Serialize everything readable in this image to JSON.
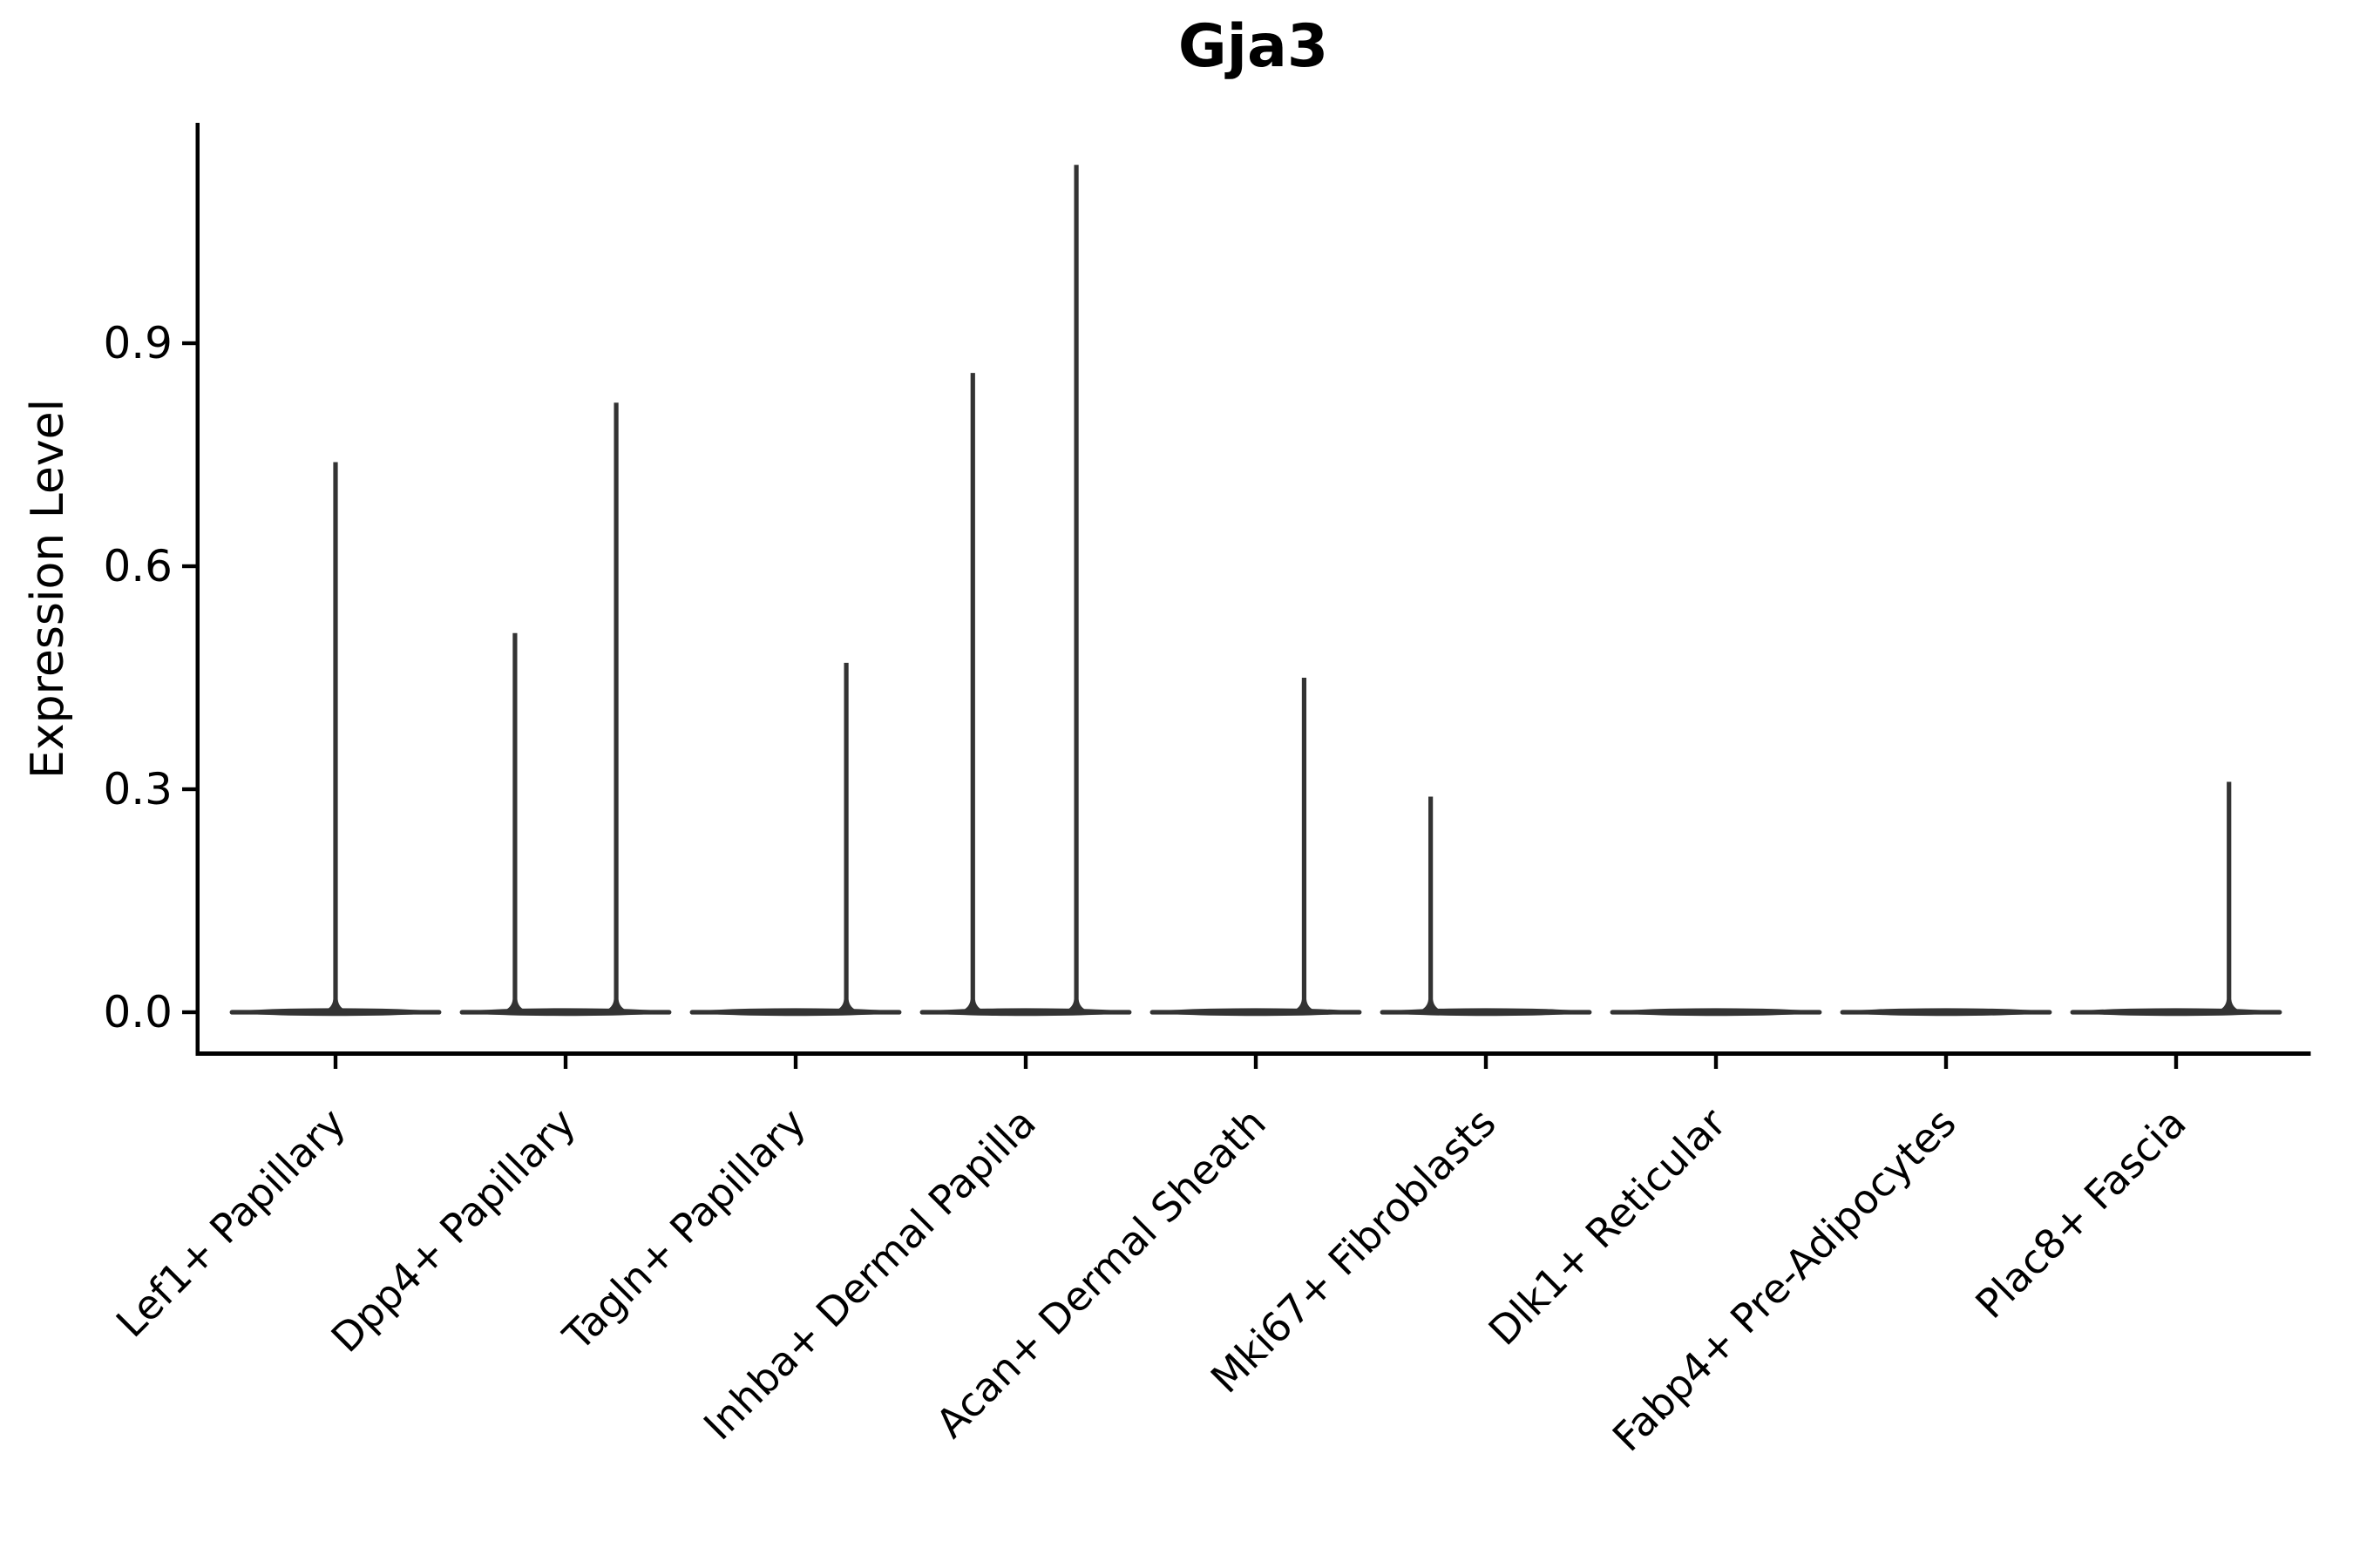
{
  "chart_data": {
    "type": "violin",
    "title": "Gja3",
    "ylabel": "Expression Level",
    "xlabel": "",
    "y_ticks": [
      0.0,
      0.3,
      0.6,
      0.9
    ],
    "y_tick_labels": [
      "0.0",
      "0.3",
      "0.6",
      "0.9"
    ],
    "ylim": [
      -0.06,
      1.2
    ],
    "grid": false,
    "legend": "none",
    "categories": [
      "Lef1+ Papillary",
      "Dpp4+ Papillary",
      "Tagln+ Papillary",
      "Inhba+ Dermal Papilla",
      "Acan+ Dermal Sheath",
      "Mki67+ Fibroblasts",
      "Dlk1+ Reticular",
      "Fabp4+ Pre-Adipocytes",
      "Plac8+ Fascia"
    ],
    "violins": [
      {
        "category": "Lef1+ Papillary",
        "baseline_value": 0.0,
        "max_expression": 0.74,
        "spikes": [
          {
            "x_offset": 0.0,
            "value": 0.74
          }
        ]
      },
      {
        "category": "Dpp4+ Papillary",
        "baseline_value": 0.0,
        "max_expression": 0.82,
        "spikes": [
          {
            "x_offset": -0.22,
            "value": 0.51
          },
          {
            "x_offset": 0.22,
            "value": 0.82
          }
        ]
      },
      {
        "category": "Tagln+ Papillary",
        "baseline_value": 0.0,
        "max_expression": 0.47,
        "spikes": [
          {
            "x_offset": 0.22,
            "value": 0.47
          }
        ]
      },
      {
        "category": "Inhba+ Dermal Papilla",
        "baseline_value": 0.0,
        "max_expression": 1.14,
        "spikes": [
          {
            "x_offset": -0.23,
            "value": 0.86
          },
          {
            "x_offset": 0.22,
            "value": 1.14
          }
        ]
      },
      {
        "category": "Acan+ Dermal Sheath",
        "baseline_value": 0.0,
        "max_expression": 0.45,
        "spikes": [
          {
            "x_offset": 0.21,
            "value": 0.45
          }
        ]
      },
      {
        "category": "Mki67+ Fibroblasts",
        "baseline_value": 0.0,
        "max_expression": 0.29,
        "spikes": [
          {
            "x_offset": -0.24,
            "value": 0.29
          }
        ]
      },
      {
        "category": "Dlk1+ Reticular",
        "baseline_value": 0.0,
        "max_expression": 0.0,
        "spikes": []
      },
      {
        "category": "Fabp4+ Pre-Adipocytes",
        "baseline_value": 0.0,
        "max_expression": 0.0,
        "spikes": []
      },
      {
        "category": "Plac8+ Fascia",
        "baseline_value": 0.0,
        "max_expression": 0.31,
        "spikes": [
          {
            "x_offset": 0.23,
            "value": 0.31
          }
        ]
      }
    ],
    "violin_width_fraction": 0.92,
    "colors": {
      "violin": "#333333",
      "axis": "#000000",
      "text": "#000000",
      "background": "#ffffff"
    }
  }
}
